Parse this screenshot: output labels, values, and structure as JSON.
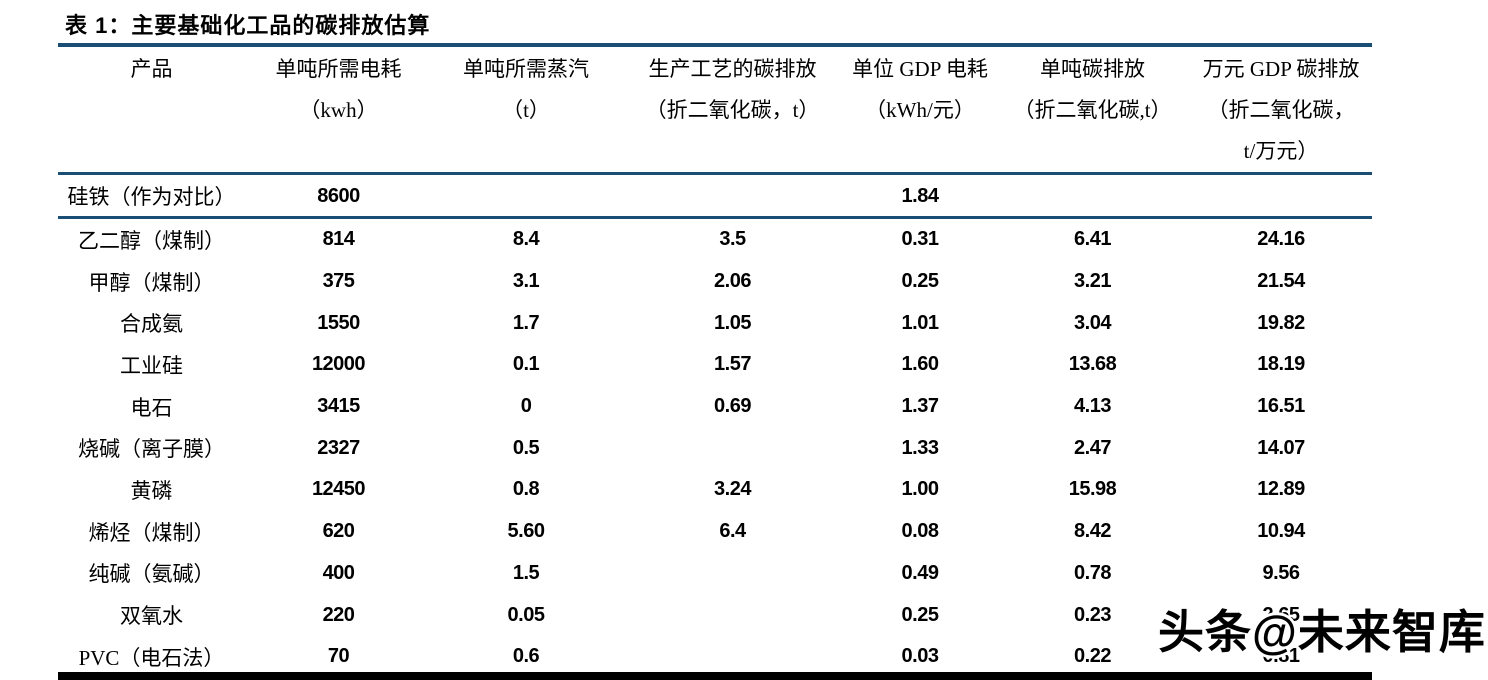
{
  "page": {
    "title": "表 1：主要基础化工品的碳排放估算",
    "watermark": "头条@未来智库"
  },
  "colors": {
    "rule_navy": "#1b4e74",
    "bottom_bar": "#000000",
    "text": "#000000"
  },
  "table": {
    "columns": [
      {
        "line1": "产品",
        "line2": "",
        "line3": ""
      },
      {
        "line1": "单吨所需电耗",
        "line2": "（kwh）",
        "line3": ""
      },
      {
        "line1": "单吨所需蒸汽",
        "line2": "（t）",
        "line3": ""
      },
      {
        "line1": "生产工艺的碳排放",
        "line2": "（折二氧化碳，t）",
        "line3": ""
      },
      {
        "line1": "单位 GDP 电耗",
        "line2": "（kWh/元）",
        "line3": ""
      },
      {
        "line1": "单吨碳排放",
        "line2": "（折二氧化碳,t）",
        "line3": ""
      },
      {
        "line1": "万元 GDP 碳排放",
        "line2": "（折二氧化碳，",
        "line3": "t/万元）"
      }
    ],
    "comparison_row": {
      "product": "硅铁（作为对比）",
      "values": [
        "8600",
        "",
        "",
        "1.84",
        "",
        ""
      ]
    },
    "rows": [
      {
        "product": "乙二醇（煤制）",
        "values": [
          "814",
          "8.4",
          "3.5",
          "0.31",
          "6.41",
          "24.16"
        ]
      },
      {
        "product": "甲醇（煤制）",
        "values": [
          "375",
          "3.1",
          "2.06",
          "0.25",
          "3.21",
          "21.54"
        ]
      },
      {
        "product": "合成氨",
        "values": [
          "1550",
          "1.7",
          "1.05",
          "1.01",
          "3.04",
          "19.82"
        ]
      },
      {
        "product": "工业硅",
        "values": [
          "12000",
          "0.1",
          "1.57",
          "1.60",
          "13.68",
          "18.19"
        ]
      },
      {
        "product": "电石",
        "values": [
          "3415",
          "0",
          "0.69",
          "1.37",
          "4.13",
          "16.51"
        ]
      },
      {
        "product": "烧碱（离子膜）",
        "values": [
          "2327",
          "0.5",
          "",
          "1.33",
          "2.47",
          "14.07"
        ]
      },
      {
        "product": "黄磷",
        "values": [
          "12450",
          "0.8",
          "3.24",
          "1.00",
          "15.98",
          "12.89"
        ]
      },
      {
        "product": "烯烃（煤制）",
        "values": [
          "620",
          "5.60",
          "6.4",
          "0.08",
          "8.42",
          "10.94"
        ]
      },
      {
        "product": "纯碱（氨碱）",
        "values": [
          "400",
          "1.5",
          "",
          "0.49",
          "0.78",
          "9.56"
        ]
      },
      {
        "product": "双氧水",
        "values": [
          "220",
          "0.05",
          "",
          "0.25",
          "0.23",
          "2.65"
        ]
      },
      {
        "product": "PVC（电石法）",
        "values": [
          "70",
          "0.6",
          "",
          "0.03",
          "0.22",
          "0.81"
        ]
      }
    ]
  }
}
